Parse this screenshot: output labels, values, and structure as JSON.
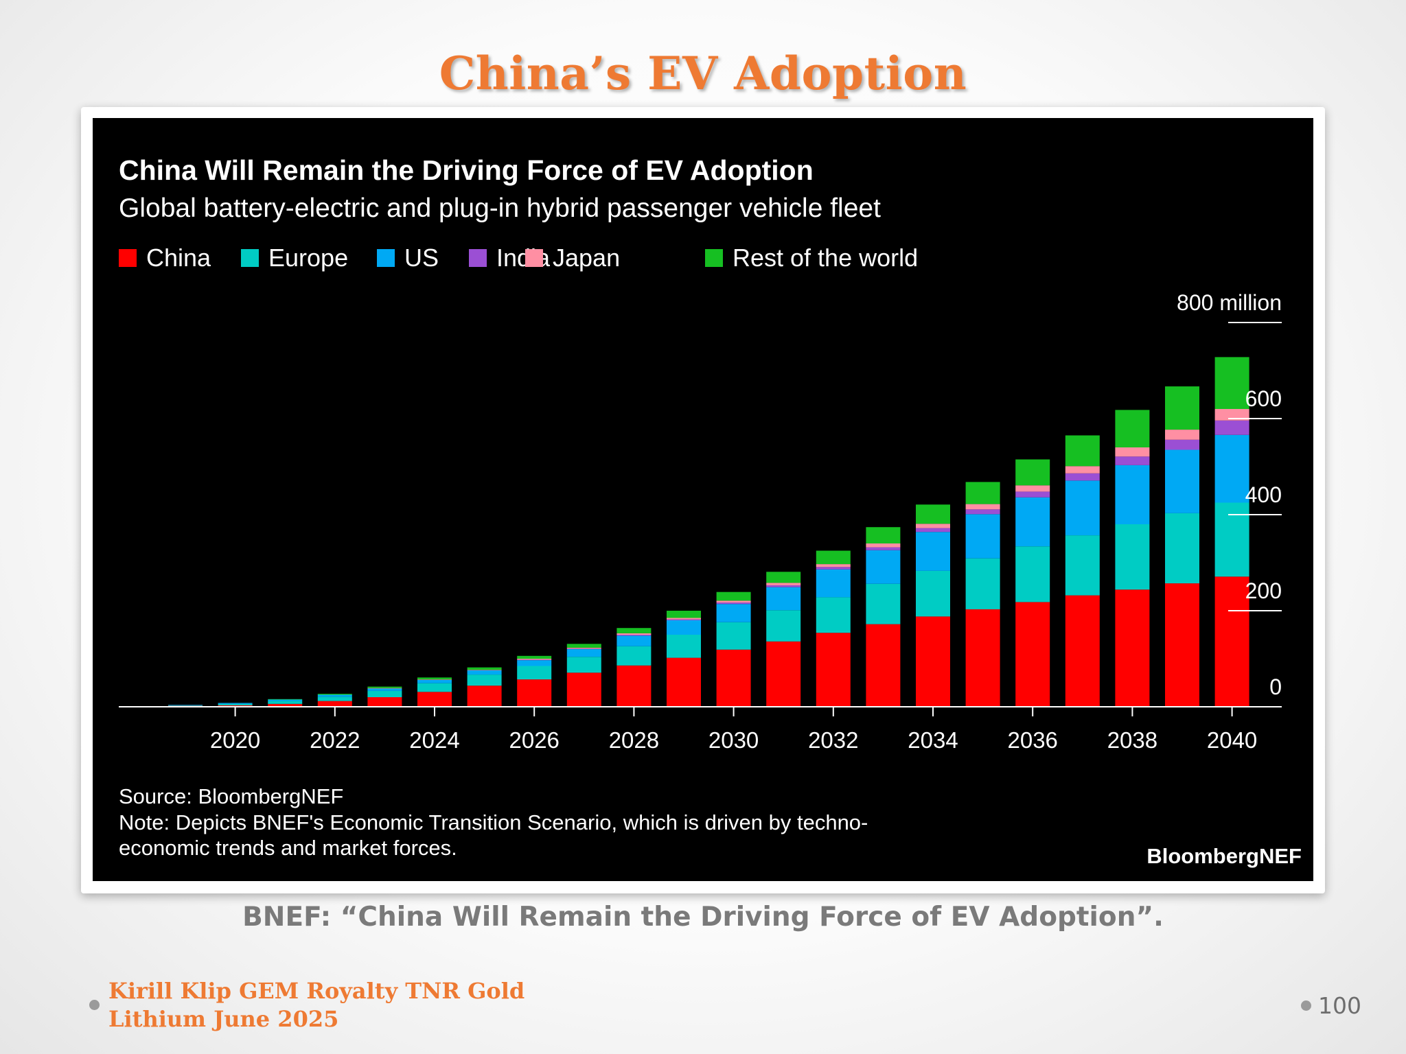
{
  "slide": {
    "title": "China’s EV Adoption",
    "caption": "BNEF: “China Will Remain the Driving Force of EV Adoption”.",
    "footer_line1": "Kirill Klip GEM Royalty TNR Gold",
    "footer_line2": "Lithium June 2025",
    "page_number": "100"
  },
  "chart_data": {
    "type": "bar",
    "stacked": true,
    "title": "China Will Remain the Driving Force of EV Adoption",
    "subtitle": "Global battery-electric and plug-in hybrid passenger vehicle fleet",
    "x": [
      2019,
      2020,
      2021,
      2022,
      2023,
      2024,
      2025,
      2026,
      2027,
      2028,
      2029,
      2030,
      2031,
      2032,
      2033,
      2034,
      2035,
      2036,
      2037,
      2038,
      2039,
      2040
    ],
    "x_tick_labels": [
      "2020",
      "2022",
      "2024",
      "2026",
      "2028",
      "2030",
      "2032",
      "2034",
      "2036",
      "2038",
      "2040"
    ],
    "y_ticks": [
      0,
      200,
      400,
      600,
      800
    ],
    "y_top_label": "800 million",
    "ylim": [
      0,
      800
    ],
    "y_axis_side": "right",
    "legend_placement": "top-left",
    "grid": false,
    "series": [
      {
        "name": "China",
        "color": "#ff0000",
        "values": [
          2,
          3,
          6,
          12,
          20,
          31,
          44,
          57,
          71,
          86,
          102,
          119,
          136,
          154,
          172,
          188,
          203,
          218,
          232,
          244,
          257,
          271
        ]
      },
      {
        "name": "Europe",
        "color": "#00ccc4",
        "values": [
          1,
          3,
          6,
          9,
          13,
          18,
          23,
          28,
          33,
          40,
          48,
          57,
          65,
          74,
          84,
          95,
          106,
          116,
          125,
          136,
          146,
          154
        ]
      },
      {
        "name": "US",
        "color": "#00a9f4",
        "values": [
          1,
          2,
          3,
          4,
          5,
          7,
          9,
          12,
          16,
          22,
          30,
          38,
          48,
          58,
          70,
          81,
          92,
          102,
          114,
          123,
          132,
          141
        ]
      },
      {
        "name": "India",
        "color": "#9b4fd4",
        "values": [
          0,
          0,
          0,
          0,
          0,
          0,
          0,
          1,
          1,
          2,
          2,
          3,
          4,
          5,
          6,
          8,
          10,
          12,
          15,
          18,
          21,
          30
        ]
      },
      {
        "name": "Japan",
        "color": "#ff8fa3",
        "values": [
          0,
          0,
          0,
          0,
          1,
          1,
          1,
          2,
          2,
          3,
          3,
          4,
          5,
          6,
          8,
          9,
          11,
          13,
          15,
          19,
          21,
          24
        ]
      },
      {
        "name": "Rest of the world",
        "color": "#16bf22",
        "values": [
          0,
          0,
          1,
          2,
          3,
          4,
          5,
          6,
          8,
          11,
          15,
          18,
          23,
          28,
          34,
          40,
          46,
          54,
          64,
          78,
          90,
          108
        ]
      }
    ],
    "source_text": "Source: BloombergNEF",
    "note_line1": "Note: Depicts BNEF's Economic Transition Scenario, which is driven by techno-",
    "note_line2": "economic trends and market forces.",
    "brand": "BloombergNEF"
  }
}
